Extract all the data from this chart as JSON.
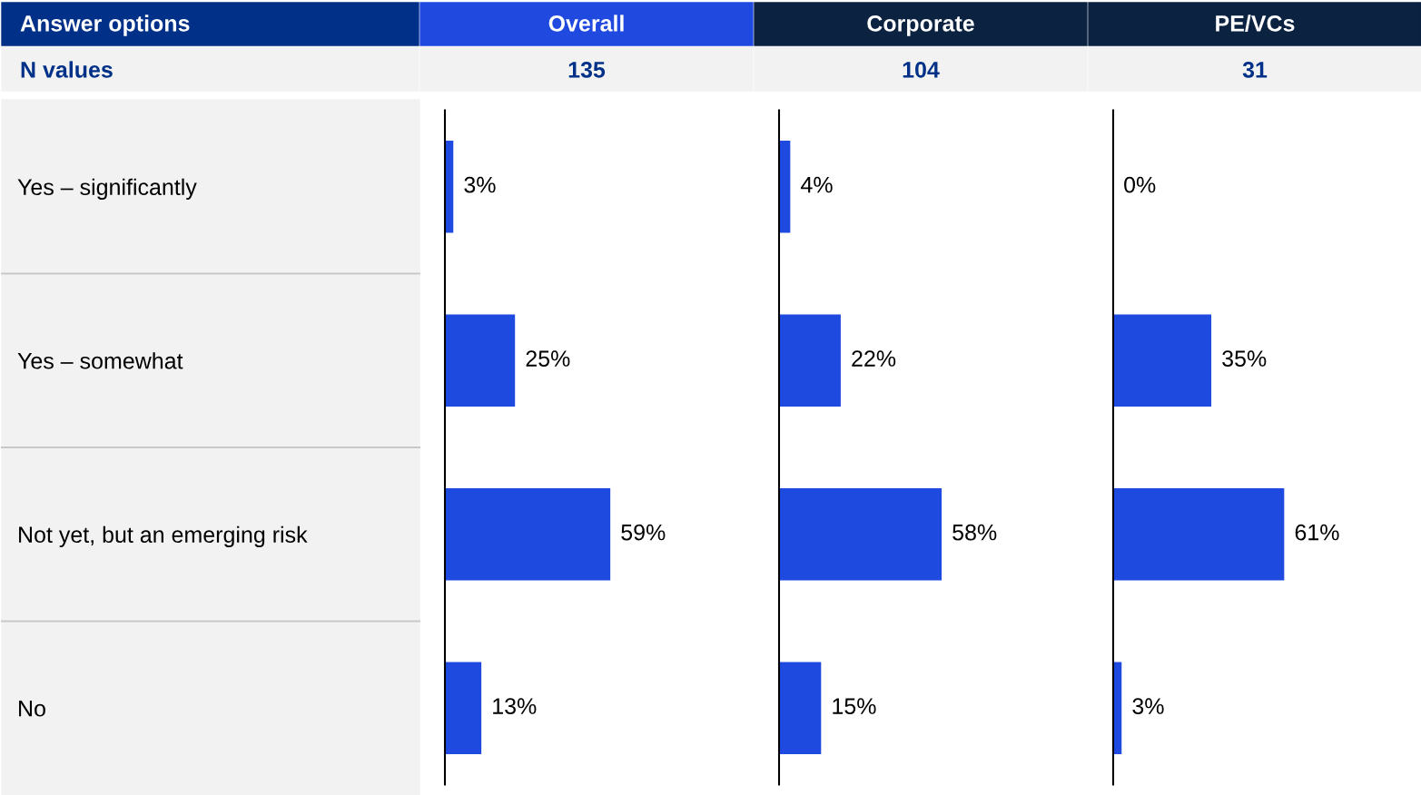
{
  "chart_data": [
    {
      "type": "bar",
      "orientation": "horizontal",
      "title": "Overall",
      "subtitle": "135",
      "ylabel": "Answer options",
      "annotations": [
        "N values"
      ],
      "categories": [
        "Yes – significantly",
        "Yes – somewhat",
        "Not yet, but an emerging risk",
        "No"
      ],
      "values": [
        3,
        25,
        59,
        13
      ],
      "value_labels": [
        "3%",
        "25%",
        "59%",
        "13%"
      ],
      "color": "#1f4ae0",
      "tick_labels": "y",
      "grid": false,
      "legend": false
    },
    {
      "type": "bar",
      "orientation": "horizontal",
      "title": "Corporate",
      "subtitle": "104",
      "categories": [
        null,
        null,
        null,
        null
      ],
      "values": [
        4,
        22,
        58,
        15
      ],
      "value_labels": [
        "4%",
        "22%",
        "58%",
        "15%"
      ],
      "color": "#1f4ae0",
      "grid": false,
      "legend": false
    },
    {
      "type": "bar",
      "orientation": "horizontal",
      "title": "PE/VCs",
      "subtitle": "31",
      "categories": [
        null,
        null,
        null,
        null
      ],
      "values": [
        0,
        35,
        61,
        3
      ],
      "value_labels": [
        "0%",
        "35%",
        "61%",
        "3%"
      ],
      "color": "#1f4ae0",
      "grid": false,
      "legend": false
    }
  ]
}
